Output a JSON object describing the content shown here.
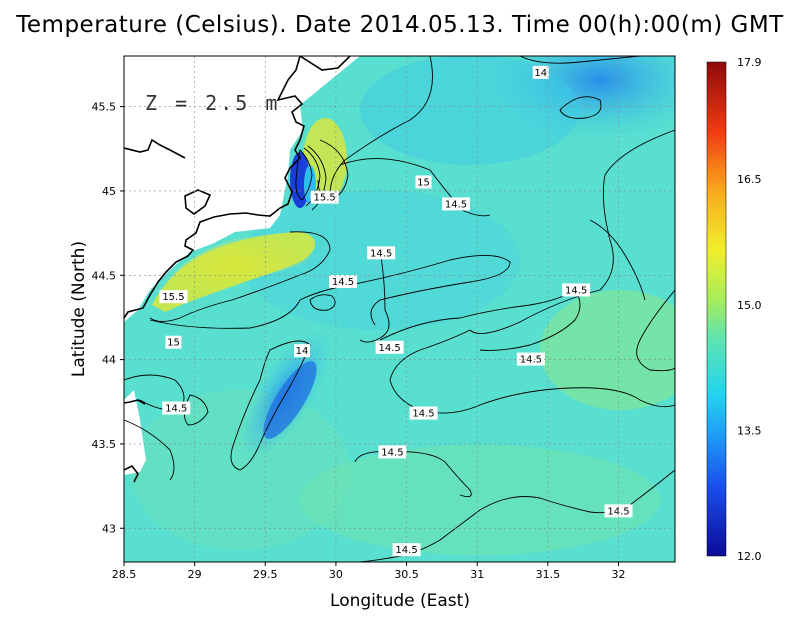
{
  "title": "Temperature (Celsius). Date 2014.05.13. Time 00(h):00(m) GMT",
  "chart_data": {
    "type": "heatmap",
    "title": "Temperature (Celsius). Date 2014.05.13. Time 00(h):00(m) GMT",
    "xlabel": "Longitude (East)",
    "ylabel": "Latitude (North)",
    "xlim": [
      28.5,
      32.4
    ],
    "ylim": [
      42.8,
      45.8
    ],
    "x_ticks": [
      "28.5",
      "29",
      "29.5",
      "30",
      "30.5",
      "31",
      "31.5",
      "32"
    ],
    "y_ticks": [
      "43",
      "43.5",
      "44",
      "44.5",
      "45",
      "45.5"
    ],
    "annotation": "Z = 2.5 m",
    "colorbar": {
      "min": 12.0,
      "max": 17.9,
      "ticks": [
        "12.0",
        "13.5",
        "15.0",
        "16.5",
        "17.9"
      ]
    },
    "contour_labels": [
      {
        "text": "14",
        "x": 31.45,
        "y": 45.7
      },
      {
        "text": "15",
        "x": 30.62,
        "y": 45.05
      },
      {
        "text": "14.5",
        "x": 30.85,
        "y": 44.92
      },
      {
        "text": "15.5",
        "x": 29.92,
        "y": 44.96
      },
      {
        "text": "14.5",
        "x": 30.32,
        "y": 44.63
      },
      {
        "text": "14.5",
        "x": 30.05,
        "y": 44.46
      },
      {
        "text": "15.5",
        "x": 28.85,
        "y": 44.37
      },
      {
        "text": "15",
        "x": 28.85,
        "y": 44.1
      },
      {
        "text": "14",
        "x": 29.76,
        "y": 44.05
      },
      {
        "text": "14.5",
        "x": 30.38,
        "y": 44.07
      },
      {
        "text": "14.5",
        "x": 31.7,
        "y": 44.41
      },
      {
        "text": "14.5",
        "x": 31.38,
        "y": 44.0
      },
      {
        "text": "14.5",
        "x": 28.87,
        "y": 43.71
      },
      {
        "text": "14.5",
        "x": 30.62,
        "y": 43.68
      },
      {
        "text": "14.5",
        "x": 30.4,
        "y": 43.45
      },
      {
        "text": "14.5",
        "x": 32.0,
        "y": 43.1
      },
      {
        "text": "14.5",
        "x": 30.5,
        "y": 42.87
      }
    ]
  }
}
